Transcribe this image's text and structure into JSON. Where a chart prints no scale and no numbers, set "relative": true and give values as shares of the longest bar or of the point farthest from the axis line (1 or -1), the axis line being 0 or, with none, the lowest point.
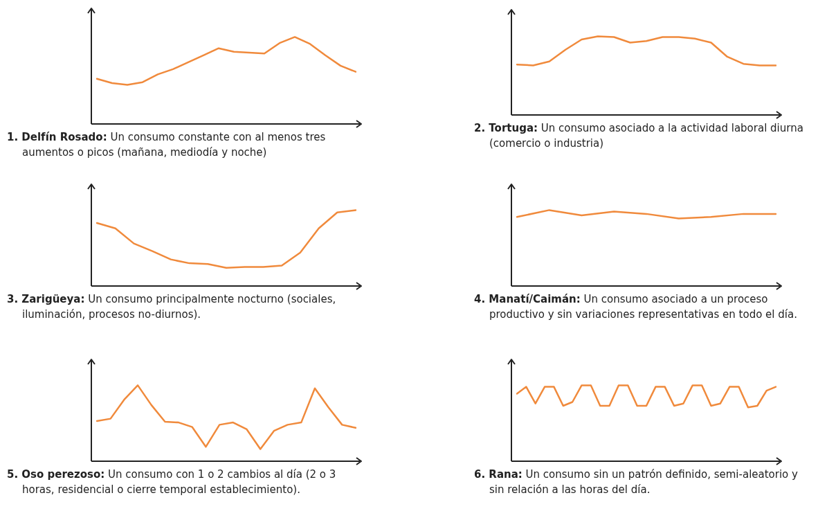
{
  "chart_data": [
    {
      "type": "line",
      "relative": true,
      "title": "1. Delfín Rosado:",
      "subtitle": "Un consumo constante con al menos tres aumentos o picos (mañana, mediodía y noche)",
      "color": "#f08a3c",
      "categories": [
        null,
        null,
        null,
        null,
        null,
        null,
        null,
        null,
        null,
        null,
        null,
        null,
        null,
        null,
        null,
        null,
        null,
        null
      ],
      "values": [
        0.52,
        0.47,
        0.45,
        0.48,
        0.57,
        0.63,
        0.71,
        0.79,
        0.87,
        0.83,
        0.82,
        0.81,
        0.93,
        1,
        0.92,
        0.79,
        0.67,
        0.6
      ]
    },
    {
      "type": "line",
      "relative": true,
      "title": "2. Tortuga:",
      "subtitle": "Un consumo asociado a la actividad laboral diurna (comercio o industria)",
      "color": "#f08a3c",
      "categories": [
        null,
        null,
        null,
        null,
        null,
        null,
        null,
        null,
        null,
        null,
        null,
        null,
        null,
        null,
        null,
        null,
        null
      ],
      "values": [
        0.64,
        0.63,
        0.68,
        0.83,
        0.96,
        1,
        0.99,
        0.92,
        0.94,
        0.99,
        0.99,
        0.97,
        0.92,
        0.74,
        0.65,
        0.63,
        0.63
      ]
    },
    {
      "type": "line",
      "relative": true,
      "title": "3. Zarigüeya:",
      "subtitle": "Un consumo principalmente nocturno (sociales, iluminación, procesos no-diurnos).",
      "color": "#f08a3c",
      "categories": [
        null,
        null,
        null,
        null,
        null,
        null,
        null,
        null,
        null,
        null,
        null,
        null,
        null,
        null,
        null
      ],
      "values": [
        0.83,
        0.76,
        0.56,
        0.46,
        0.35,
        0.3,
        0.29,
        0.24,
        0.25,
        0.25,
        0.27,
        0.44,
        0.76,
        0.97,
        1
      ]
    },
    {
      "type": "line",
      "relative": true,
      "title": "4. Manatí/Caimán:",
      "subtitle": "Un consumo asociado a un proceso productivo y sin variaciones representativas en todo el día.",
      "color": "#f08a3c",
      "categories": [
        null,
        null,
        null,
        null,
        null,
        null,
        null,
        null,
        null
      ],
      "values": [
        0.91,
        1,
        0.93,
        0.98,
        0.95,
        0.89,
        0.91,
        0.95,
        0.95
      ]
    },
    {
      "type": "line",
      "relative": true,
      "title": "5. Oso perezoso:",
      "subtitle": "Un consumo con 1 o 2 cambios al día (2 o 3 horas, residencial o cierre temporal establecimiento).",
      "color": "#f08a3c",
      "categories": [
        null,
        null,
        null,
        null,
        null,
        null,
        null,
        null,
        null,
        null,
        null,
        null,
        null,
        null,
        null,
        null,
        null,
        null,
        null,
        null
      ],
      "values": [
        0.53,
        0.56,
        0.81,
        1,
        0.74,
        0.52,
        0.51,
        0.45,
        0.19,
        0.48,
        0.51,
        0.42,
        0.16,
        0.4,
        0.48,
        0.51,
        0.96,
        0.71,
        0.48,
        0.44
      ]
    },
    {
      "type": "line",
      "relative": true,
      "title": "6. Rana:",
      "subtitle": "Un consumo sin un patrón definido, semi-aleatorio y sin relación a las horas del día.",
      "color": "#f08a3c",
      "categories": [
        null,
        null,
        null,
        null,
        null,
        null,
        null,
        null,
        null,
        null,
        null,
        null,
        null,
        null,
        null,
        null,
        null,
        null,
        null,
        null,
        null,
        null,
        null,
        null,
        null,
        null,
        null,
        null,
        null
      ],
      "values": [
        0.89,
        0.98,
        0.76,
        0.98,
        0.98,
        0.73,
        0.78,
        1,
        1,
        0.73,
        0.73,
        1,
        1,
        0.73,
        0.73,
        0.98,
        0.98,
        0.73,
        0.76,
        1,
        1,
        0.73,
        0.76,
        0.98,
        0.98,
        0.71,
        0.73,
        0.93,
        0.98
      ]
    }
  ]
}
